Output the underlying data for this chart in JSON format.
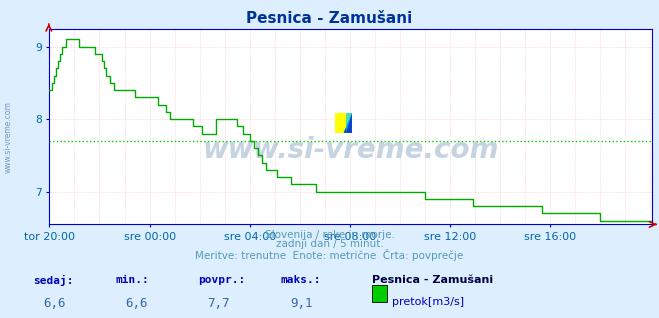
{
  "title": "Pesnica - Zamušani",
  "bg_color": "#ddeeff",
  "plot_bg_color": "#ffffff",
  "line_color": "#00aa00",
  "avg_line_color": "#00cc00",
  "avg_value": 7.7,
  "y_min": 6.55,
  "y_max": 9.25,
  "y_ticks": [
    7,
    8,
    9
  ],
  "x_labels": [
    "tor 20:00",
    "sre 00:00",
    "sre 04:00",
    "sre 08:00",
    "sre 12:00",
    "sre 16:00"
  ],
  "x_tick_positions": [
    0,
    48,
    96,
    144,
    192,
    240
  ],
  "tick_color": "#0066aa",
  "grid_color": "#ffbbbb",
  "title_color": "#003399",
  "watermark": "www.si-vreme.com",
  "watermark_color": "#bbccdd",
  "sub_text1": "Slovenija / reke in morje.",
  "sub_text2": "zadnji dan / 5 minut.",
  "sub_text3": "Meritve: trenutne  Enote: metrične  Črta: povprečje",
  "sub_color": "#5599bb",
  "footer_label_color": "#0000bb",
  "footer_value_color": "#3366aa",
  "sedaj_lbl": "sedaj:",
  "min_lbl": "min.:",
  "povpr_lbl": "povpr.:",
  "maks_lbl": "maks.:",
  "sedaj": "6,6",
  "min_val": "6,6",
  "povpr": "7,7",
  "maks": "9,1",
  "station_name": "Pesnica - Zamušani",
  "legend_label": "pretok[m3/s]",
  "legend_color": "#00cc00",
  "spine_color": "#0000cc",
  "left_watermark": "www.si-vreme.com",
  "data_values": [
    8.4,
    8.5,
    8.6,
    8.7,
    8.8,
    8.9,
    9.0,
    9.0,
    9.1,
    9.1,
    9.1,
    9.1,
    9.1,
    9.1,
    9.0,
    9.0,
    9.0,
    9.0,
    9.0,
    9.0,
    9.0,
    9.0,
    8.9,
    8.9,
    8.9,
    8.8,
    8.7,
    8.6,
    8.6,
    8.5,
    8.5,
    8.4,
    8.4,
    8.4,
    8.4,
    8.4,
    8.4,
    8.4,
    8.4,
    8.4,
    8.4,
    8.3,
    8.3,
    8.3,
    8.3,
    8.3,
    8.3,
    8.3,
    8.3,
    8.3,
    8.3,
    8.3,
    8.2,
    8.2,
    8.2,
    8.2,
    8.1,
    8.1,
    8.0,
    8.0,
    8.0,
    8.0,
    8.0,
    8.0,
    8.0,
    8.0,
    8.0,
    8.0,
    8.0,
    7.9,
    7.9,
    7.9,
    7.9,
    7.8,
    7.8,
    7.8,
    7.8,
    7.8,
    7.8,
    7.8,
    8.0,
    8.0,
    8.0,
    8.0,
    8.0,
    8.0,
    8.0,
    8.0,
    8.0,
    8.0,
    7.9,
    7.9,
    7.9,
    7.8,
    7.8,
    7.8,
    7.7,
    7.7,
    7.6,
    7.6,
    7.5,
    7.5,
    7.4,
    7.4,
    7.3,
    7.3,
    7.3,
    7.3,
    7.3,
    7.2,
    7.2,
    7.2,
    7.2,
    7.2,
    7.2,
    7.2,
    7.1,
    7.1,
    7.1,
    7.1,
    7.1,
    7.1,
    7.1,
    7.1,
    7.1,
    7.1,
    7.1,
    7.1,
    7.0,
    7.0,
    7.0,
    7.0,
    7.0,
    7.0,
    7.0,
    7.0,
    7.0,
    7.0,
    7.0,
    7.0,
    7.0,
    7.0,
    7.0,
    7.0,
    7.0,
    7.0,
    7.0,
    7.0,
    7.0,
    7.0,
    7.0,
    7.0,
    7.0,
    7.0,
    7.0,
    7.0,
    7.0,
    7.0,
    7.0,
    7.0,
    7.0,
    7.0,
    7.0,
    7.0,
    7.0,
    7.0,
    7.0,
    7.0,
    7.0,
    7.0,
    7.0,
    7.0,
    7.0,
    7.0,
    7.0,
    7.0,
    7.0,
    7.0,
    7.0,
    7.0,
    6.9,
    6.9,
    6.9,
    6.9,
    6.9,
    6.9,
    6.9,
    6.9,
    6.9,
    6.9,
    6.9,
    6.9,
    6.9,
    6.9,
    6.9,
    6.9,
    6.9,
    6.9,
    6.9,
    6.9,
    6.9,
    6.9,
    6.9,
    6.8,
    6.8,
    6.8,
    6.8,
    6.8,
    6.8,
    6.8,
    6.8,
    6.8,
    6.8,
    6.8,
    6.8,
    6.8,
    6.8,
    6.8,
    6.8,
    6.8,
    6.8,
    6.8,
    6.8,
    6.8,
    6.8,
    6.8,
    6.8,
    6.8,
    6.8,
    6.8,
    6.8,
    6.8,
    6.8,
    6.8,
    6.8,
    6.8,
    6.7,
    6.7,
    6.7,
    6.7,
    6.7,
    6.7,
    6.7,
    6.7,
    6.7,
    6.7,
    6.7,
    6.7,
    6.7,
    6.7,
    6.7,
    6.7,
    6.7,
    6.7,
    6.7,
    6.7,
    6.7,
    6.7,
    6.7,
    6.7,
    6.7,
    6.7,
    6.7,
    6.7,
    6.6,
    6.6,
    6.6,
    6.6,
    6.6,
    6.6,
    6.6,
    6.6,
    6.6,
    6.6,
    6.6,
    6.6,
    6.6,
    6.6,
    6.6,
    6.6,
    6.6,
    6.6,
    6.6,
    6.6,
    6.6,
    6.6,
    6.6,
    6.6,
    6.6,
    6.6
  ]
}
